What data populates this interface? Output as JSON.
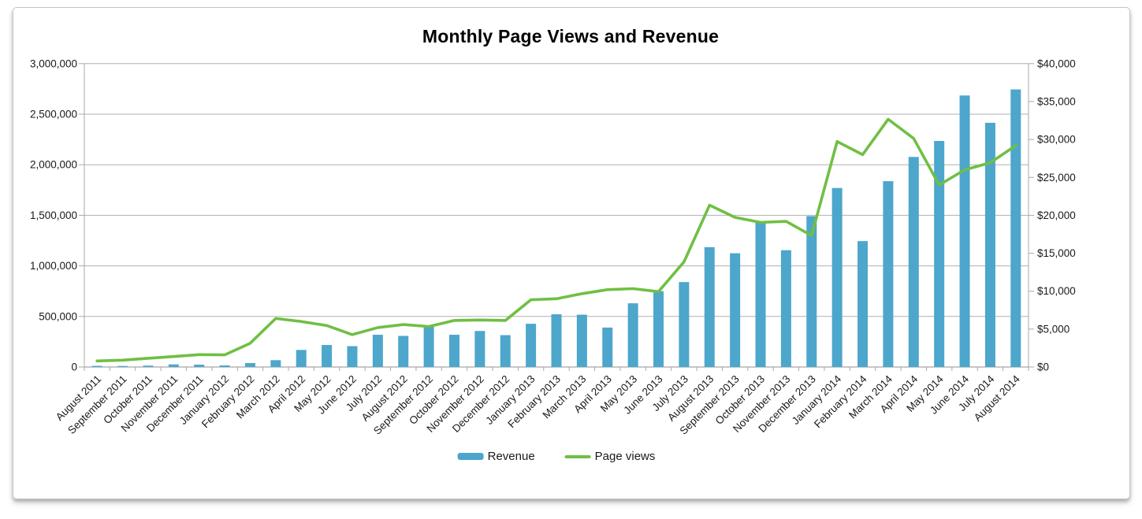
{
  "chart_data": {
    "type": "bar",
    "combo": "bar+line, dual axis",
    "title": "Monthly Page Views and Revenue",
    "categories": [
      "August 2011",
      "September 2011",
      "October 2011",
      "November 2011",
      "December 2011",
      "January 2012",
      "February 2012",
      "March 2012",
      "April 2012",
      "May 2012",
      "June 2012",
      "July 2012",
      "August 2012",
      "September 2012",
      "October 2012",
      "November 2012",
      "December 2012",
      "January 2013",
      "February 2013",
      "March 2013",
      "April 2013",
      "May 2013",
      "June 2013",
      "July 2013",
      "August 2013",
      "September 2013",
      "October 2013",
      "November 2013",
      "December 2013",
      "January 2014",
      "February 2014",
      "March 2014",
      "April 2014",
      "May 2014",
      "June 2014",
      "July 2014",
      "August 2014"
    ],
    "series": [
      {
        "name": "Revenue",
        "type": "bar",
        "axis": "right",
        "unit": "USD",
        "color": "#4da6cb",
        "values": [
          150,
          130,
          180,
          340,
          310,
          210,
          520,
          900,
          2250,
          2900,
          2750,
          4250,
          4100,
          5350,
          4250,
          4750,
          4200,
          5700,
          6950,
          6900,
          5200,
          8400,
          10000,
          11200,
          15800,
          15000,
          19000,
          15400,
          19900,
          23600,
          16600,
          24500,
          27700,
          29800,
          35800,
          32200,
          36600
        ]
      },
      {
        "name": "Page views",
        "type": "line",
        "axis": "left",
        "unit": "views",
        "color": "#70bf44",
        "values": [
          60000,
          68000,
          86000,
          104000,
          122000,
          120000,
          235000,
          480000,
          450000,
          410000,
          320000,
          390000,
          420000,
          400000,
          460000,
          465000,
          460000,
          665000,
          675000,
          725000,
          765000,
          775000,
          745000,
          1040000,
          1600000,
          1480000,
          1430000,
          1440000,
          1300000,
          2230000,
          2100000,
          2450000,
          2260000,
          1800000,
          1950000,
          2020000,
          2190000
        ]
      }
    ],
    "left_axis": {
      "min": 0,
      "max": 3000000,
      "step": 500000,
      "tick_labels": [
        "0",
        "500,000",
        "1,000,000",
        "1,500,000",
        "2,000,000",
        "2,500,000",
        "3,000,000"
      ]
    },
    "right_axis": {
      "min": 0,
      "max": 40000,
      "step": 5000,
      "tick_labels": [
        "$0",
        "$5,000",
        "$10,000",
        "$15,000",
        "$20,000",
        "$25,000",
        "$30,000",
        "$35,000",
        "$40,000"
      ]
    },
    "grid": true,
    "legend_position": "bottom",
    "x_label_rotation_deg": 45
  },
  "colors": {
    "bar": "#4da6cb",
    "line": "#70bf44",
    "gridline": "#b0b0b0",
    "axis": "#a8a8a8",
    "text": "#1a1a1a",
    "card_border": "#c6c6c6"
  }
}
